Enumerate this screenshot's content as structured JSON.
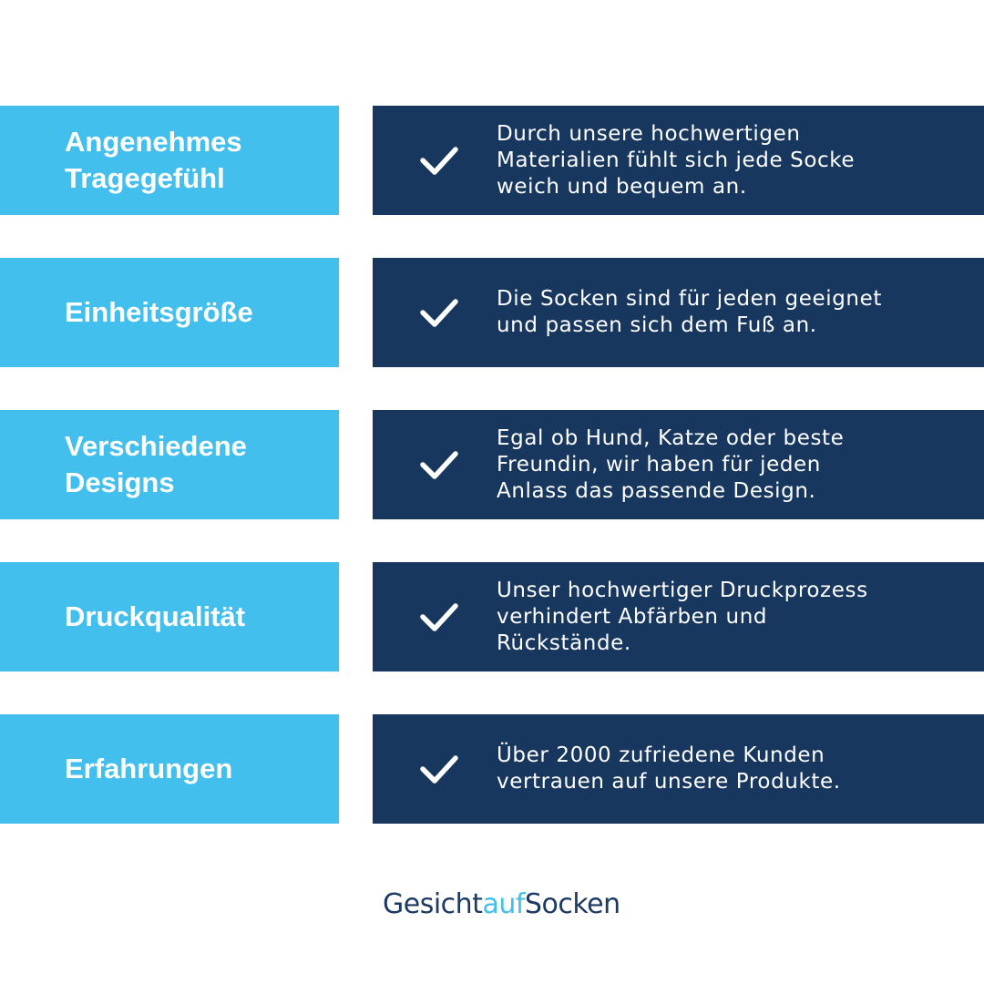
{
  "colors": {
    "light": "#42bfed",
    "dark": "#17375e"
  },
  "rows": [
    {
      "title": "Angenehmes\nTragegefühl",
      "icon": "check-icon",
      "text": "Durch unsere hochwertigen\nMaterialien fühlt sich jede Socke\nweich und bequem an."
    },
    {
      "title": "Einheitsgröße",
      "icon": "check-icon",
      "text": "Die Socken sind für jeden geeignet\nund passen sich dem Fuß an."
    },
    {
      "title": "Verschiedene\nDesigns",
      "icon": "check-icon",
      "text": "Egal ob Hund, Katze oder beste\nFreundin, wir haben für jeden\nAnlass das passende Design."
    },
    {
      "title": "Druckqualität",
      "icon": "check-icon",
      "text": "Unser hochwertiger Druckprozess\nverhindert Abfärben und\nRückstände."
    },
    {
      "title": "Erfahrungen",
      "icon": "check-icon",
      "text": "Über 2000 zufriedene Kunden\nvertrauen auf unsere Produkte."
    }
  ],
  "logo": {
    "part1": "Gesicht",
    "part2": "auf",
    "part3": "Socken"
  }
}
